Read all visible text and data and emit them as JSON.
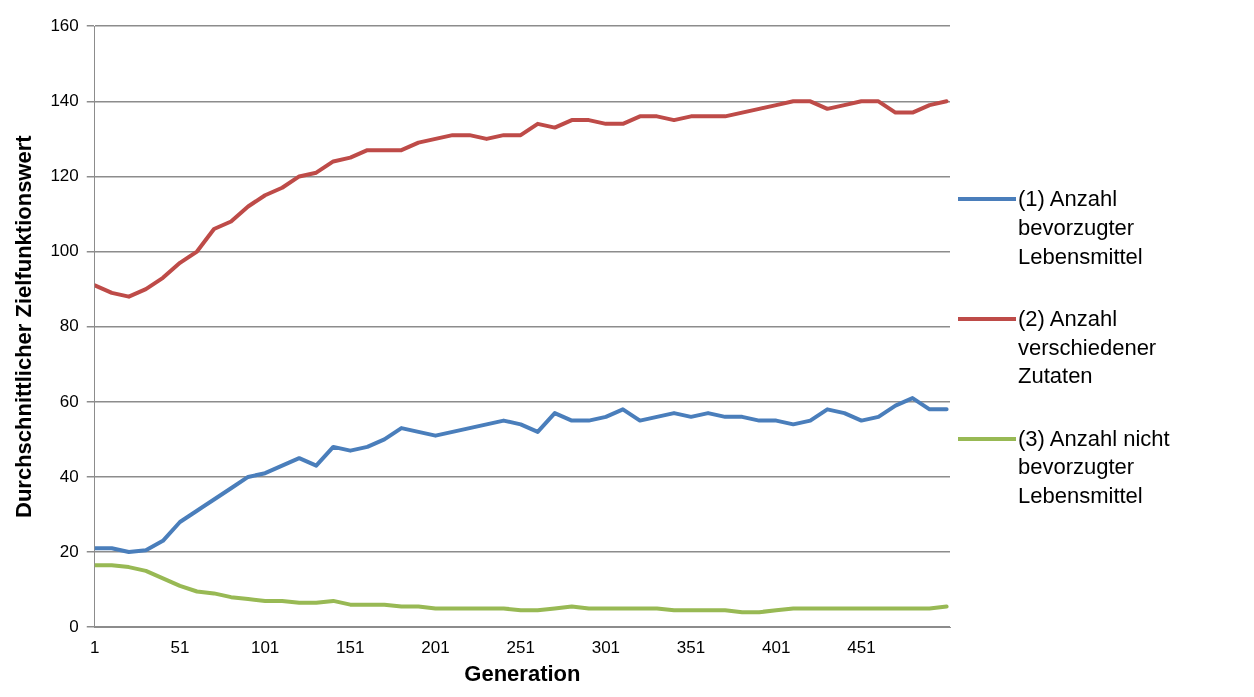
{
  "chart_data": {
    "type": "line",
    "xlabel": "Generation",
    "ylabel": "Durchschnittlicher Zielfunktionswert",
    "x": [
      1,
      11,
      21,
      31,
      41,
      51,
      61,
      71,
      81,
      91,
      101,
      111,
      121,
      131,
      141,
      151,
      161,
      171,
      181,
      191,
      201,
      211,
      221,
      231,
      241,
      251,
      261,
      271,
      281,
      291,
      301,
      311,
      321,
      331,
      341,
      351,
      361,
      371,
      381,
      391,
      401,
      411,
      421,
      431,
      441,
      451,
      461,
      471,
      481,
      491,
      501
    ],
    "xlim": [
      1,
      503
    ],
    "xticks": [
      1,
      51,
      101,
      151,
      201,
      251,
      301,
      351,
      401,
      451
    ],
    "ylim": [
      0,
      160
    ],
    "yticks": [
      0,
      20,
      40,
      60,
      80,
      100,
      120,
      140,
      160
    ],
    "grid": "y",
    "legend": "right",
    "marker": "none",
    "line_style": "solid",
    "series": [
      {
        "name": "(1) Anzahl bevorzugter Lebensmittel",
        "color": "#4a7ebb",
        "values": [
          21,
          21,
          20,
          20.5,
          23,
          28,
          31,
          34,
          37,
          40,
          41,
          43,
          45,
          43,
          48,
          47,
          48,
          50,
          53,
          52,
          51,
          52,
          53,
          54,
          55,
          54,
          52,
          57,
          55,
          55,
          56,
          58,
          55,
          56,
          57,
          56,
          57,
          56,
          56,
          55,
          55,
          54,
          55,
          58,
          57,
          55,
          56,
          59,
          61,
          58,
          58
        ]
      },
      {
        "name": "(2) Anzahl verschiedener Zutaten",
        "color": "#be4b48",
        "values": [
          91,
          89,
          88,
          90,
          93,
          97,
          100,
          106,
          108,
          112,
          115,
          117,
          120,
          121,
          124,
          125,
          127,
          127,
          127,
          129,
          130,
          131,
          131,
          130,
          131,
          131,
          134,
          133,
          135,
          135,
          134,
          134,
          136,
          136,
          135,
          136,
          136,
          136,
          137,
          138,
          139,
          140,
          140,
          138,
          139,
          140,
          140,
          137,
          137,
          139,
          140
        ]
      },
      {
        "name": "(3) Anzahl nicht bevorzugter Lebensmittel",
        "color": "#98b954",
        "values": [
          16.5,
          16.5,
          16,
          15,
          13,
          11,
          9.5,
          9,
          8,
          7.5,
          7,
          7,
          6.5,
          6.5,
          7,
          6,
          6,
          6,
          5.5,
          5.5,
          5,
          5,
          5,
          5,
          5,
          4.5,
          4.5,
          5,
          5.5,
          5,
          5,
          5,
          5,
          5,
          4.5,
          4.5,
          4.5,
          4.5,
          4,
          4,
          4.5,
          5,
          5,
          5,
          5,
          5,
          5,
          5,
          5,
          5,
          5.5
        ]
      }
    ]
  }
}
